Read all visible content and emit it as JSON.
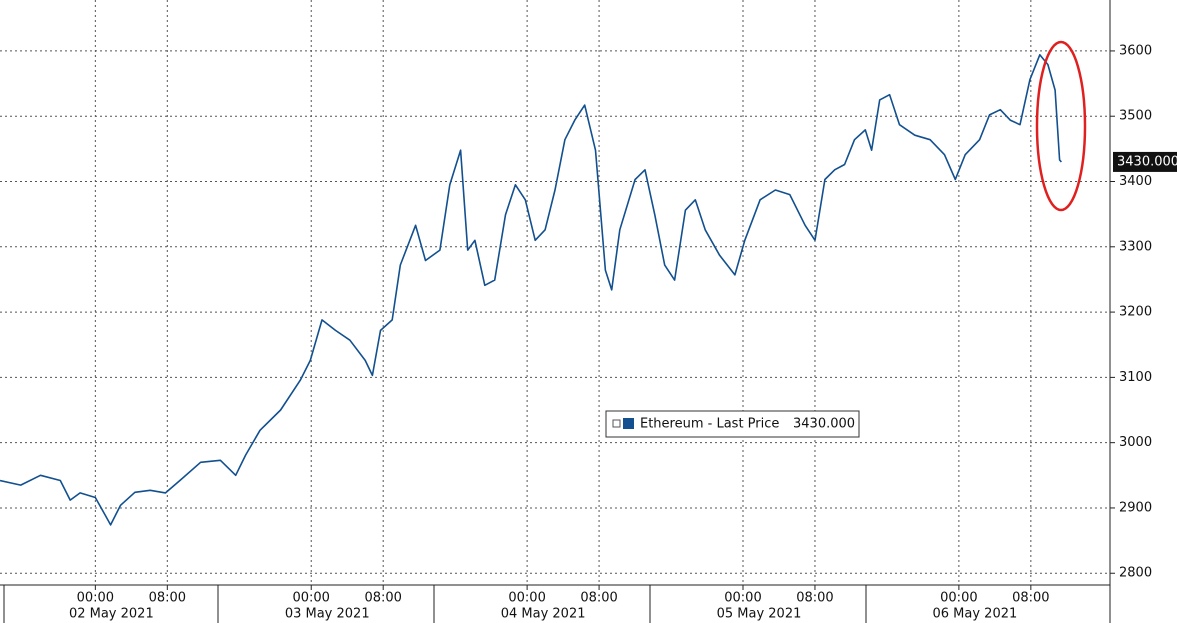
{
  "chart_data": {
    "type": "line",
    "x": [
      13.4,
      15.7,
      17.9,
      20.1,
      21.2,
      22.3,
      24,
      25.1,
      25.7,
      26.8,
      28.4,
      30.1,
      31.8,
      33.4,
      35.7,
      37.9,
      39.6,
      40.7,
      42.3,
      44.6,
      46.8,
      47.9,
      49.2,
      50.7,
      52.3,
      54,
      54.8,
      55.7,
      57,
      57.9,
      59.6,
      60.7,
      62.3,
      63.4,
      64.6,
      65.4,
      66.2,
      67.3,
      68.4,
      69.6,
      70.7,
      71.8,
      72.9,
      74,
      75.1,
      76.2,
      77.3,
      78.4,
      79.6,
      80.7,
      81.4,
      82.3,
      84,
      85.1,
      86.2,
      87.3,
      88.4,
      89.6,
      90.7,
      91.8,
      93.4,
      95.1,
      96.2,
      97.9,
      99.6,
      101.2,
      102.9,
      104,
      105.1,
      106.2,
      107.3,
      108.4,
      109.6,
      110.3,
      111.2,
      112.3,
      113.4,
      115.1,
      116.8,
      118.4,
      119.6,
      120.7,
      122.3,
      123.4,
      124.6,
      125.7,
      126.8,
      127.9,
      129,
      129.9,
      130.7,
      131.2,
      131.4
    ],
    "series": [
      {
        "name": "Ethereum - Last Price",
        "color": "#12508f",
        "values": [
          2942,
          2935,
          2950,
          2942,
          2912,
          2923,
          2916,
          2889,
          2874,
          2904,
          2924,
          2927,
          2923,
          2942,
          2970,
          2973,
          2950,
          2981,
          3019,
          3050,
          3096,
          3126,
          3188,
          3172,
          3157,
          3126,
          3103,
          3172,
          3188,
          3272,
          3333,
          3279,
          3295,
          3395,
          3448,
          3295,
          3310,
          3241,
          3249,
          3349,
          3395,
          3372,
          3310,
          3326,
          3387,
          3464,
          3494,
          3517,
          3448,
          3264,
          3234,
          3326,
          3403,
          3418,
          3349,
          3272,
          3249,
          3356,
          3372,
          3326,
          3287,
          3257,
          3310,
          3372,
          3387,
          3380,
          3333,
          3310,
          3403,
          3418,
          3426,
          3464,
          3479,
          3448,
          3525,
          3533,
          3487,
          3471,
          3464,
          3441,
          3403,
          3441,
          3464,
          3502,
          3510,
          3494,
          3487,
          3556,
          3594,
          3579,
          3540,
          3433,
          3430
        ],
        "last_value": 3430,
        "last_value_label": "3430.000"
      }
    ],
    "xlim": [
      13.4,
      136.8
    ],
    "ylim": [
      2782,
      3678
    ],
    "yticks": [
      2800,
      2900,
      3000,
      3100,
      3200,
      3300,
      3400,
      3500,
      3600
    ],
    "xticks": [
      {
        "value": 24,
        "label": "00:00"
      },
      {
        "value": 32,
        "label": "08:00"
      },
      {
        "value": 48,
        "label": "00:00"
      },
      {
        "value": 56,
        "label": "08:00"
      },
      {
        "value": 72,
        "label": "00:00"
      },
      {
        "value": 80,
        "label": "08:00"
      },
      {
        "value": 96,
        "label": "00:00"
      },
      {
        "value": 104,
        "label": "08:00"
      },
      {
        "value": 120,
        "label": "00:00"
      },
      {
        "value": 128,
        "label": "08:00"
      }
    ],
    "xtick_dates": [
      "02 May 2021",
      "03 May 2021",
      "04 May 2021",
      "05 May 2021",
      "06 May 2021"
    ],
    "grid": true
  }
}
